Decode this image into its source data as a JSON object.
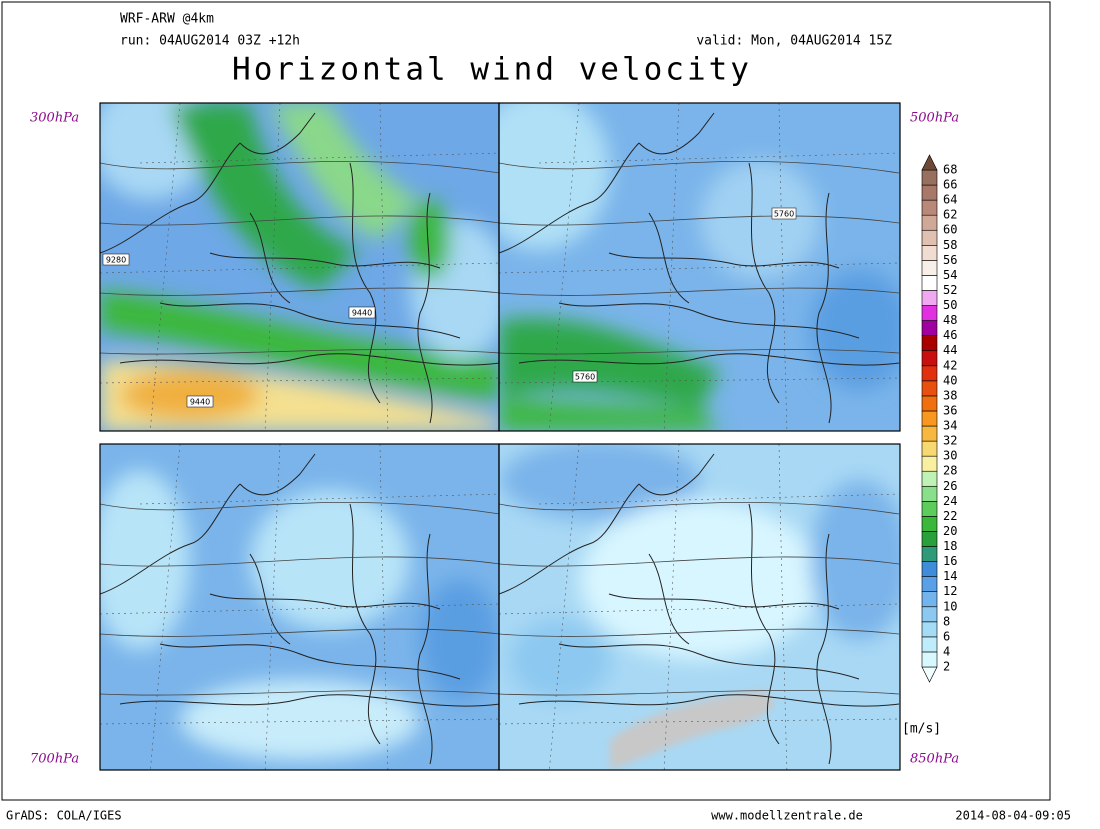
{
  "header": {
    "model": "WRF-ARW @4km",
    "run": "run: 04AUG2014 03Z +12h",
    "valid": "valid: Mon, 04AUG2014 15Z",
    "title": "Horizontal wind velocity"
  },
  "panels": [
    {
      "level": "300hPa",
      "contours": [
        "9280",
        "9440",
        "9440"
      ]
    },
    {
      "level": "500hPa",
      "contours": [
        "5760",
        "5760"
      ]
    },
    {
      "level": "700hPa"
    },
    {
      "level": "850hPa"
    }
  ],
  "colorbar": {
    "unit": "[m/s]",
    "labels": [
      2,
      4,
      6,
      8,
      10,
      12,
      14,
      16,
      18,
      20,
      22,
      24,
      26,
      28,
      30,
      32,
      34,
      36,
      38,
      40,
      42,
      44,
      46,
      48,
      50,
      52,
      54,
      56,
      58,
      60,
      62,
      64,
      66,
      68
    ],
    "colors": [
      "#f2ffff",
      "#d8f8ff",
      "#bfecfb",
      "#a5dcf5",
      "#8cc8f0",
      "#73b4ec",
      "#5aa0e6",
      "#3f8cd8",
      "#2f9a78",
      "#2aa03c",
      "#3ab83a",
      "#5ccc5c",
      "#8ae08a",
      "#bff2b4",
      "#f8f0a0",
      "#f8d870",
      "#f8b840",
      "#f89820",
      "#f07010",
      "#e85010",
      "#e03010",
      "#c81010",
      "#a80000",
      "#a000a0",
      "#e030e0",
      "#f0a8f0",
      "#ffffff",
      "#f8f0e8",
      "#f0dcd0",
      "#e0c0b0",
      "#d0a898",
      "#b88878",
      "#a87868",
      "#987060",
      "#886050",
      "#704838"
    ]
  },
  "footer": {
    "left": "GrADS: COLA/IGES",
    "center": "www.modellzentrale.de",
    "right": "2014-08-04-09:05"
  }
}
